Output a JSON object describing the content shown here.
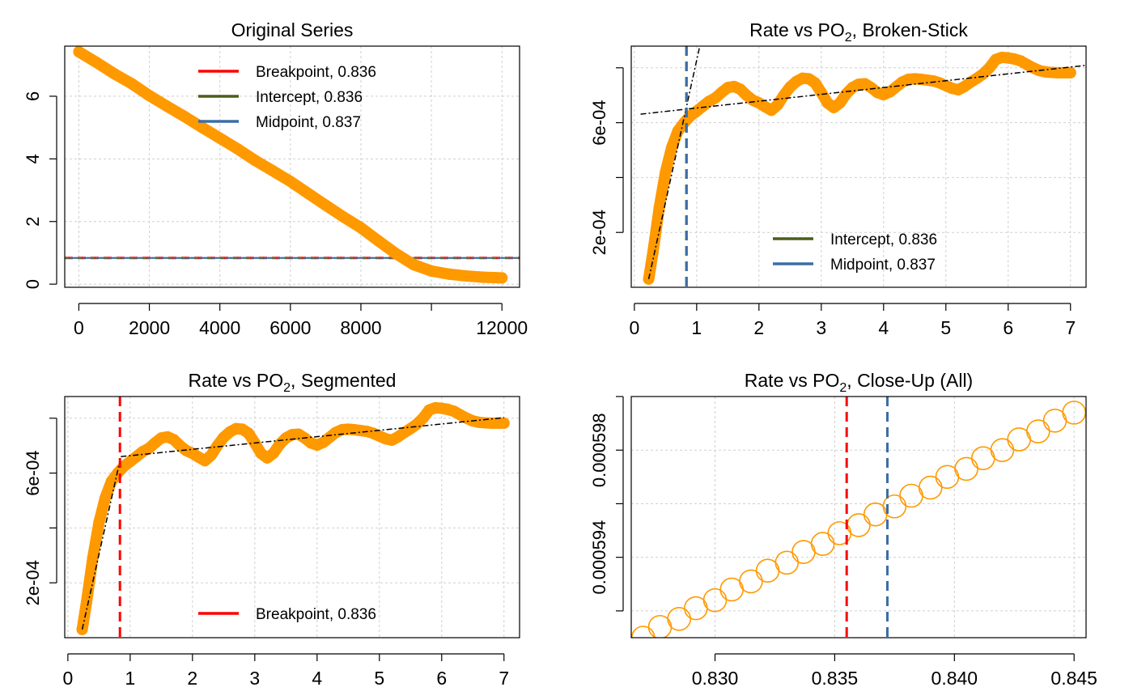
{
  "chart_data": [
    {
      "type": "scatter",
      "title": "Original Series",
      "xlim": [
        -400,
        12500
      ],
      "ylim": [
        -0.1,
        7.6
      ],
      "x_ticks": [
        0,
        2000,
        4000,
        6000,
        8000,
        12000
      ],
      "x_tick_labels": [
        "0",
        "2000",
        "4000",
        "6000",
        "8000",
        "12000"
      ],
      "x_minor_ticks": [
        10000
      ],
      "y_ticks": [
        0,
        2,
        4,
        6
      ],
      "y_tick_labels": [
        "0",
        "2",
        "4",
        "6"
      ],
      "grid": true,
      "series": [
        {
          "name": "",
          "color": "#ff9900",
          "style": "thick-points",
          "x": [
            0,
            500,
            1000,
            1500,
            2000,
            2500,
            3000,
            3500,
            4000,
            4500,
            5000,
            5500,
            6000,
            6500,
            7000,
            7500,
            8000,
            8500,
            9000,
            9500,
            10000,
            10500,
            11000,
            11500,
            12000
          ],
          "y": [
            7.42,
            7.08,
            6.72,
            6.4,
            6.02,
            5.68,
            5.35,
            5.0,
            4.66,
            4.32,
            3.95,
            3.62,
            3.28,
            2.9,
            2.52,
            2.15,
            1.8,
            1.38,
            0.97,
            0.62,
            0.42,
            0.32,
            0.26,
            0.22,
            0.2
          ]
        }
      ],
      "hlines": [
        {
          "y": 0.836,
          "color": "#ff0000",
          "dash": "10 6",
          "width": 3
        },
        {
          "y": 0.836,
          "color": "#2e8b57",
          "dash": "10 6",
          "offset": 5,
          "width": 2
        },
        {
          "y": 0.837,
          "color": "#3b6ea5",
          "dash": "10 6",
          "offset": 10,
          "width": 2
        }
      ],
      "legend": {
        "position": "top-center",
        "entries": [
          {
            "label": "Breakpoint, 0.836",
            "color": "#ff0000"
          },
          {
            "label": "Intercept, 0.836",
            "color": "#4b5e1a"
          },
          {
            "label": "Midpoint, 0.837",
            "color": "#3b6ea5"
          }
        ]
      }
    },
    {
      "type": "scatter",
      "title": "Rate vs PO",
      "title_sub": "2",
      "title_rest": ", Broken-Stick",
      "xlim": [
        -0.05,
        7.25
      ],
      "ylim": [
        0.0,
        0.000879
      ],
      "x_ticks": [
        0,
        1,
        2,
        3,
        4,
        5,
        6,
        7
      ],
      "x_tick_labels": [
        "0",
        "1",
        "2",
        "3",
        "4",
        "5",
        "6",
        "7"
      ],
      "y_ticks": [
        0.0002,
        0.0004,
        0.0006,
        0.0008
      ],
      "y_tick_labels": [
        "2e-04",
        "",
        "6e-04",
        ""
      ],
      "grid": true,
      "series": [
        {
          "name": "",
          "color": "#ff9900",
          "style": "thick-points",
          "x": [
            0.23,
            0.3,
            0.4,
            0.5,
            0.6,
            0.7,
            0.8,
            0.9,
            1.0,
            1.1,
            1.2,
            1.3,
            1.4,
            1.5,
            1.6,
            1.7,
            1.8,
            1.9,
            2.0,
            2.1,
            2.2,
            2.3,
            2.4,
            2.5,
            2.6,
            2.7,
            2.8,
            2.9,
            3.0,
            3.1,
            3.2,
            3.3,
            3.4,
            3.5,
            3.6,
            3.7,
            3.8,
            3.9,
            4.0,
            4.1,
            4.2,
            4.3,
            4.4,
            4.5,
            4.6,
            4.7,
            4.8,
            4.9,
            5.0,
            5.1,
            5.2,
            5.3,
            5.4,
            5.5,
            5.6,
            5.7,
            5.8,
            5.9,
            6.0,
            6.1,
            6.2,
            6.3,
            6.4,
            6.5,
            6.6,
            6.7,
            6.8,
            6.9,
            7.0
          ],
          "y": [
            3e-05,
            0.00013,
            0.00029,
            0.00042,
            0.00051,
            0.00057,
            0.0006,
            0.000625,
            0.000642,
            0.00066,
            0.000678,
            0.00069,
            0.00071,
            0.000728,
            0.000732,
            0.000722,
            0.0007,
            0.000682,
            0.000672,
            0.000658,
            0.000645,
            0.000665,
            0.0007,
            0.00073,
            0.00075,
            0.000762,
            0.00076,
            0.000745,
            0.00071,
            0.000672,
            0.000655,
            0.000672,
            0.000705,
            0.000728,
            0.00074,
            0.000742,
            0.000728,
            0.00071,
            0.000702,
            0.000712,
            0.00073,
            0.000748,
            0.000758,
            0.00076,
            0.000758,
            0.000755,
            0.000752,
            0.000745,
            0.000735,
            0.000725,
            0.00072,
            0.000732,
            0.000748,
            0.000762,
            0.000778,
            0.0008,
            0.00083,
            0.000838,
            0.000836,
            0.000832,
            0.000825,
            0.000812,
            0.0008,
            0.00079,
            0.000785,
            0.000783,
            0.000782,
            0.000782,
            0.000782
          ]
        }
      ],
      "fit_lines": [
        {
          "x": [
            0.23,
            1.05
          ],
          "y": [
            3e-05,
            0.000879
          ],
          "color": "#000000",
          "dash": "7 3 2 3"
        },
        {
          "x": [
            0.1,
            7.25
          ],
          "y": [
            0.000631,
            0.000809
          ],
          "color": "#000000",
          "dash": "7 3 2 3"
        }
      ],
      "vlines": [
        {
          "x": 0.836,
          "color": "#4b5e1a",
          "dash": "12 7",
          "width": 3
        },
        {
          "x": 0.837,
          "color": "#3b6ea5",
          "dash": "12 7",
          "width": 3
        }
      ],
      "legend": {
        "position": "bottom-right",
        "entries": [
          {
            "label": "Intercept, 0.836",
            "color": "#4b5e1a"
          },
          {
            "label": "Midpoint, 0.837",
            "color": "#3b6ea5"
          }
        ]
      }
    },
    {
      "type": "scatter",
      "title": "Rate vs PO",
      "title_sub": "2",
      "title_rest": ", Segmented",
      "xlim": [
        -0.05,
        7.25
      ],
      "ylim": [
        0.0,
        0.000879
      ],
      "x_ticks": [
        0,
        1,
        2,
        3,
        4,
        5,
        6,
        7
      ],
      "x_tick_labels": [
        "0",
        "1",
        "2",
        "3",
        "4",
        "5",
        "6",
        "7"
      ],
      "y_ticks": [
        0.0002,
        0.0004,
        0.0006,
        0.0008
      ],
      "y_tick_labels": [
        "2e-04",
        "",
        "6e-04",
        ""
      ],
      "grid": true,
      "series": [
        {
          "name": "",
          "color": "#ff9900",
          "style": "thick-points",
          "x": [
            0.23,
            0.3,
            0.4,
            0.5,
            0.6,
            0.7,
            0.8,
            0.9,
            1.0,
            1.1,
            1.2,
            1.3,
            1.4,
            1.5,
            1.6,
            1.7,
            1.8,
            1.9,
            2.0,
            2.1,
            2.2,
            2.3,
            2.4,
            2.5,
            2.6,
            2.7,
            2.8,
            2.9,
            3.0,
            3.1,
            3.2,
            3.3,
            3.4,
            3.5,
            3.6,
            3.7,
            3.8,
            3.9,
            4.0,
            4.1,
            4.2,
            4.3,
            4.4,
            4.5,
            4.6,
            4.7,
            4.8,
            4.9,
            5.0,
            5.1,
            5.2,
            5.3,
            5.4,
            5.5,
            5.6,
            5.7,
            5.8,
            5.9,
            6.0,
            6.1,
            6.2,
            6.3,
            6.4,
            6.5,
            6.6,
            6.7,
            6.8,
            6.9,
            7.0
          ],
          "y": [
            3e-05,
            0.00013,
            0.00029,
            0.00042,
            0.00051,
            0.00057,
            0.0006,
            0.000625,
            0.000642,
            0.00066,
            0.000678,
            0.00069,
            0.00071,
            0.000728,
            0.000732,
            0.000722,
            0.0007,
            0.000682,
            0.000672,
            0.000658,
            0.000645,
            0.000665,
            0.0007,
            0.00073,
            0.00075,
            0.000762,
            0.00076,
            0.000745,
            0.00071,
            0.000672,
            0.000655,
            0.000672,
            0.000705,
            0.000728,
            0.00074,
            0.000742,
            0.000728,
            0.00071,
            0.000702,
            0.000712,
            0.00073,
            0.000748,
            0.000758,
            0.00076,
            0.000758,
            0.000755,
            0.000752,
            0.000745,
            0.000735,
            0.000725,
            0.00072,
            0.000732,
            0.000748,
            0.000762,
            0.000778,
            0.0008,
            0.00083,
            0.000838,
            0.000836,
            0.000832,
            0.000825,
            0.000812,
            0.0008,
            0.00079,
            0.000785,
            0.000783,
            0.000782,
            0.000782,
            0.000782
          ]
        }
      ],
      "fit_lines": [
        {
          "x": [
            0.23,
            0.85
          ],
          "y": [
            3e-05,
            0.00066
          ],
          "color": "#000000",
          "dash": "7 3 2 3"
        },
        {
          "x": [
            0.85,
            7.0
          ],
          "y": [
            0.00066,
            0.000802
          ],
          "color": "#000000",
          "dash": "7 3 2 3"
        }
      ],
      "vlines": [
        {
          "x": 0.836,
          "color": "#ff0000",
          "dash": "12 7",
          "width": 3
        }
      ],
      "legend": {
        "position": "bottom-center",
        "entries": [
          {
            "label": "Breakpoint, 0.836",
            "color": "#ff0000"
          }
        ]
      }
    },
    {
      "type": "scatter",
      "title": "Rate vs PO",
      "title_sub": "2",
      "title_rest": ", Close-Up (All)",
      "xlim": [
        0.8265,
        0.8455
      ],
      "ylim": [
        0.000591,
        0.0006
      ],
      "x_ticks": [
        0.83,
        0.835,
        0.84,
        0.845
      ],
      "x_tick_labels": [
        "0.830",
        "0.835",
        "0.840",
        "0.845"
      ],
      "y_ticks": [
        0.000592,
        0.000594,
        0.000596,
        0.000598,
        0.0006
      ],
      "y_tick_labels": [
        "",
        "0.000594",
        "",
        "0.000598",
        ""
      ],
      "grid": true,
      "series": [
        {
          "name": "",
          "color": "#ff9900",
          "style": "open-circles",
          "x": [
            0.827,
            0.8277,
            0.8285,
            0.8292,
            0.83,
            0.8307,
            0.8315,
            0.8322,
            0.833,
            0.8337,
            0.8345,
            0.8352,
            0.836,
            0.8367,
            0.8375,
            0.8382,
            0.839,
            0.8397,
            0.8405,
            0.8412,
            0.842,
            0.8427,
            0.8435,
            0.8442,
            0.845
          ],
          "y": [
            0.000591,
            0.0005914,
            0.0005917,
            0.0005921,
            0.0005924,
            0.0005928,
            0.0005931,
            0.0005935,
            0.0005938,
            0.0005942,
            0.0005945,
            0.0005949,
            0.0005952,
            0.0005956,
            0.0005959,
            0.0005963,
            0.0005966,
            0.000597,
            0.0005973,
            0.0005977,
            0.000598,
            0.0005984,
            0.0005987,
            0.0005991,
            0.0005994
          ]
        }
      ],
      "vlines": [
        {
          "x": 0.8355,
          "color": "#ff0000",
          "dash": "12 7",
          "width": 3
        },
        {
          "x": 0.8372,
          "color": "#3b6ea5",
          "dash": "12 7",
          "width": 3
        }
      ],
      "legend": null
    }
  ]
}
